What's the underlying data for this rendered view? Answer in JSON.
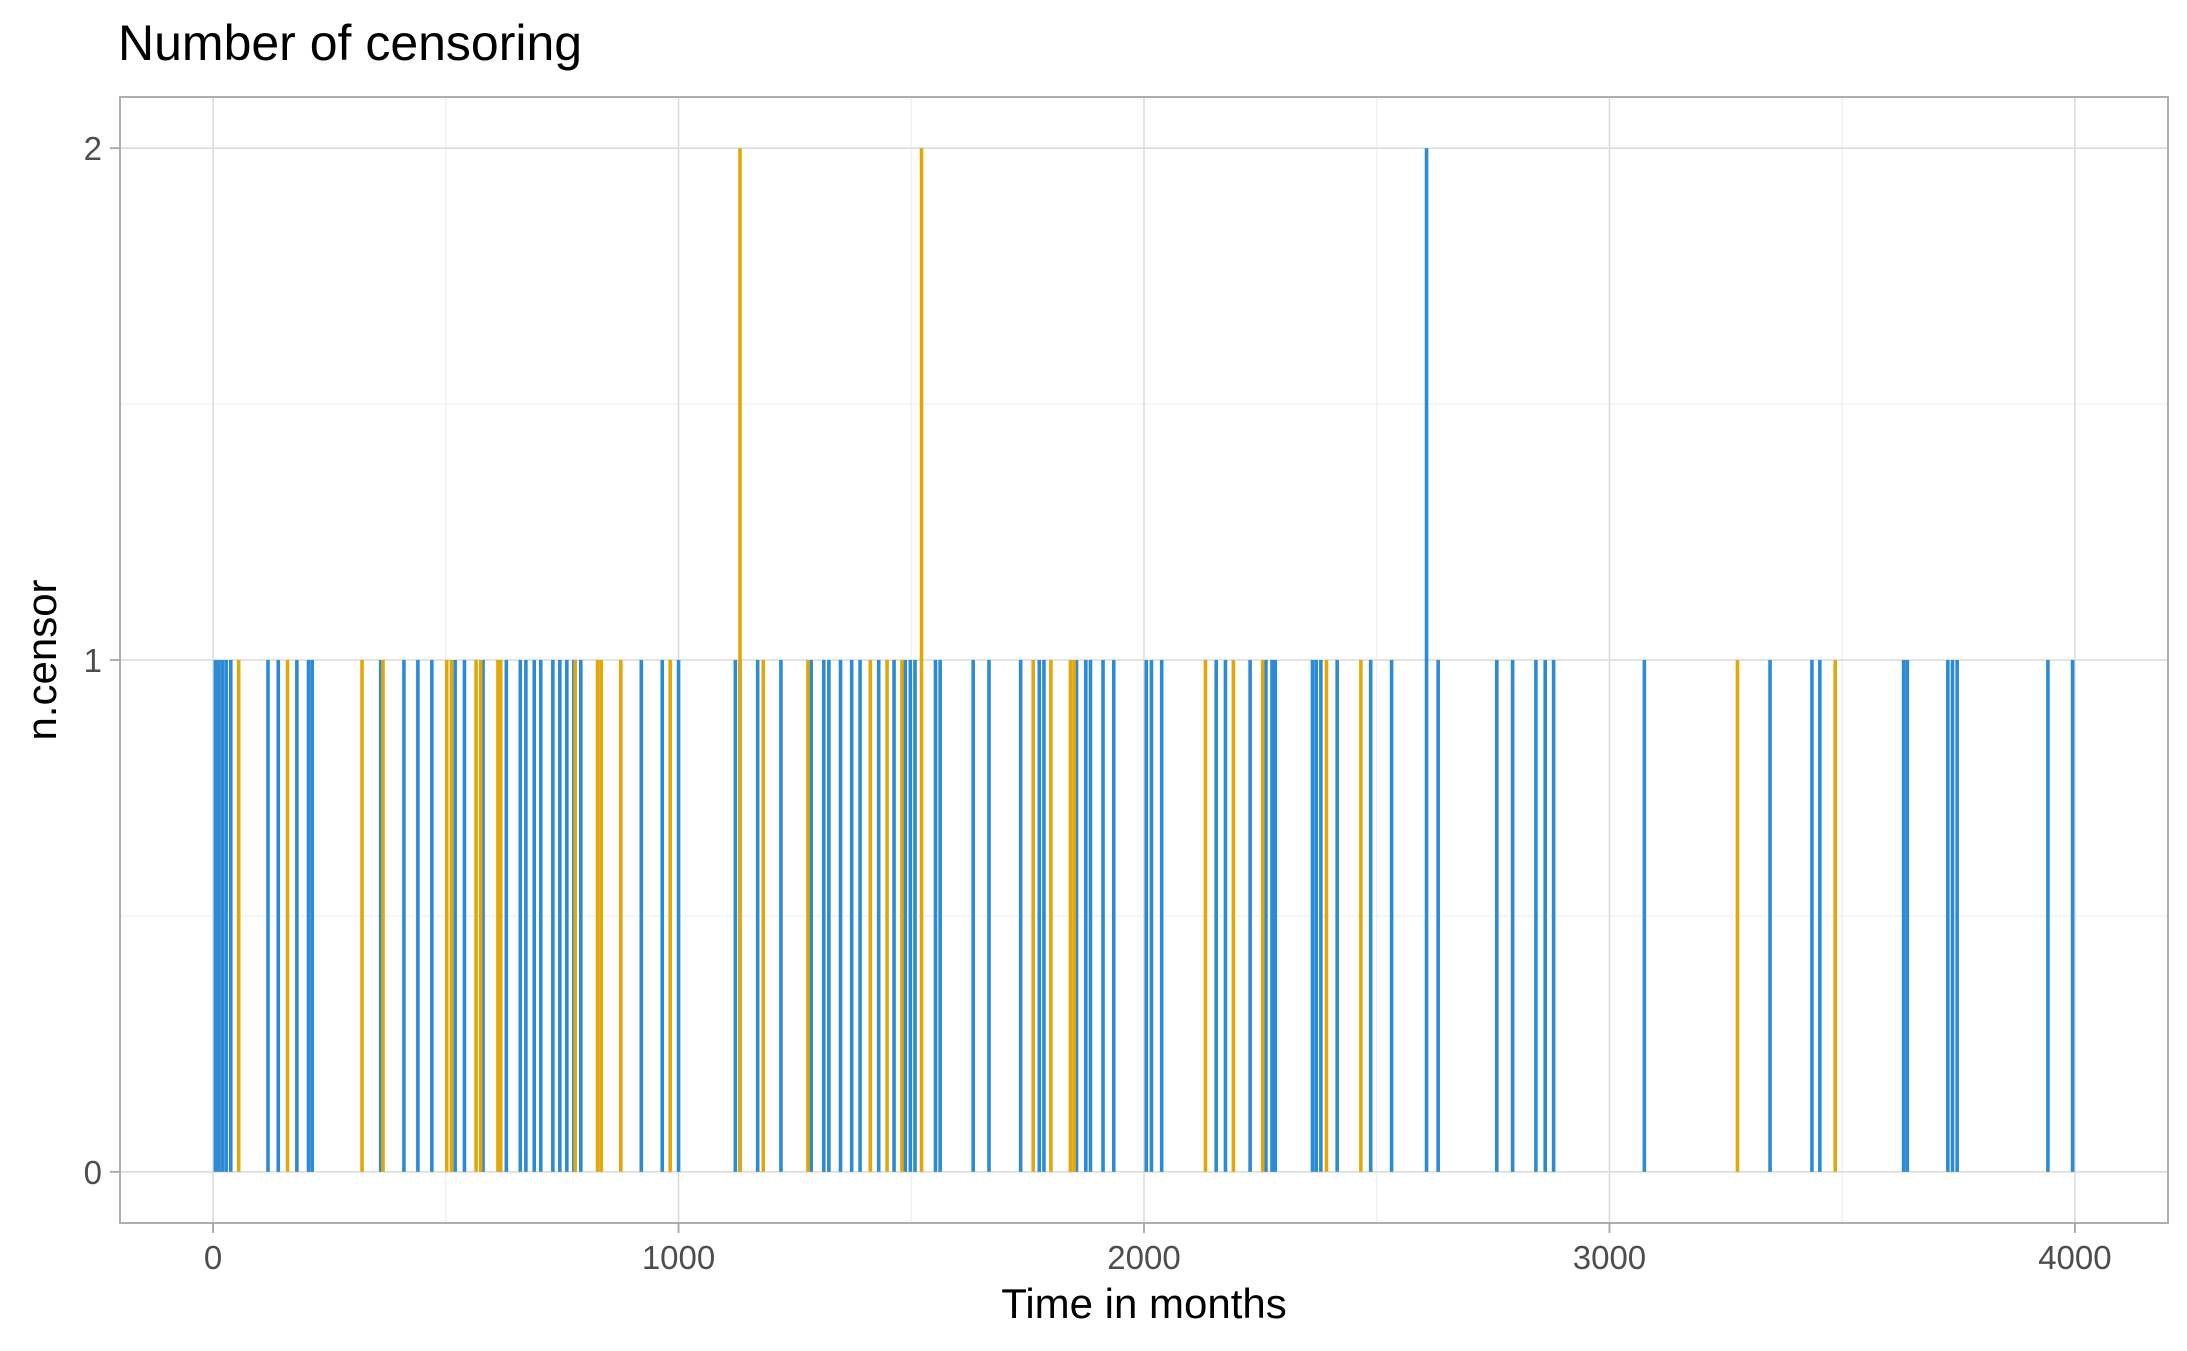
{
  "chart_data": {
    "type": "bar",
    "title": "Number of censoring",
    "xlabel": "Time in months",
    "ylabel": "n.censor",
    "xlim": [
      -200,
      4200
    ],
    "ylim": [
      -0.1,
      2.1
    ],
    "x_ticks": [
      0,
      1000,
      2000,
      3000,
      4000
    ],
    "y_ticks": [
      0,
      1,
      2
    ],
    "grid": true,
    "legend": "none",
    "colors": {
      "blue": "#2c8bd6",
      "orange": "#e3a70a"
    },
    "series": [
      {
        "color": "#2c8bd6",
        "points": [
          [
            5,
            1
          ],
          [
            12,
            1
          ],
          [
            20,
            1
          ],
          [
            28,
            1
          ],
          [
            38,
            1
          ],
          [
            118,
            1
          ],
          [
            140,
            1
          ],
          [
            180,
            1
          ],
          [
            205,
            1
          ],
          [
            213,
            1
          ],
          [
            360,
            1
          ],
          [
            410,
            1
          ],
          [
            440,
            1
          ],
          [
            470,
            1
          ],
          [
            520,
            1
          ],
          [
            540,
            1
          ],
          [
            580,
            1
          ],
          [
            630,
            1
          ],
          [
            660,
            1
          ],
          [
            672,
            1
          ],
          [
            690,
            1
          ],
          [
            704,
            1
          ],
          [
            730,
            1
          ],
          [
            745,
            1
          ],
          [
            760,
            1
          ],
          [
            775,
            1
          ],
          [
            790,
            1
          ],
          [
            920,
            1
          ],
          [
            965,
            1
          ],
          [
            1000,
            1
          ],
          [
            1122,
            1
          ],
          [
            1132,
            1
          ],
          [
            1170,
            1
          ],
          [
            1220,
            1
          ],
          [
            1285,
            1
          ],
          [
            1312,
            1
          ],
          [
            1323,
            1
          ],
          [
            1348,
            1
          ],
          [
            1372,
            1
          ],
          [
            1390,
            1
          ],
          [
            1430,
            1
          ],
          [
            1463,
            1
          ],
          [
            1487,
            1
          ],
          [
            1498,
            1
          ],
          [
            1508,
            1
          ],
          [
            1552,
            1
          ],
          [
            1562,
            1
          ],
          [
            1633,
            1
          ],
          [
            1667,
            1
          ],
          [
            1735,
            1
          ],
          [
            1775,
            1
          ],
          [
            1785,
            1
          ],
          [
            1855,
            1
          ],
          [
            1875,
            1
          ],
          [
            1885,
            1
          ],
          [
            1912,
            1
          ],
          [
            1935,
            1
          ],
          [
            2005,
            1
          ],
          [
            2016,
            1
          ],
          [
            2038,
            1
          ],
          [
            2155,
            1
          ],
          [
            2175,
            1
          ],
          [
            2228,
            1
          ],
          [
            2262,
            1
          ],
          [
            2275,
            1
          ],
          [
            2282,
            1
          ],
          [
            2362,
            1
          ],
          [
            2370,
            1
          ],
          [
            2380,
            1
          ],
          [
            2415,
            1
          ],
          [
            2487,
            1
          ],
          [
            2532,
            1
          ],
          [
            2607,
            2
          ],
          [
            2632,
            1
          ],
          [
            2758,
            1
          ],
          [
            2792,
            1
          ],
          [
            2842,
            1
          ],
          [
            2862,
            1
          ],
          [
            2880,
            1
          ],
          [
            3075,
            1
          ],
          [
            3345,
            1
          ],
          [
            3435,
            1
          ],
          [
            3452,
            1
          ],
          [
            3632,
            1
          ],
          [
            3640,
            1
          ],
          [
            3727,
            1
          ],
          [
            3737,
            1
          ],
          [
            3747,
            1
          ],
          [
            3942,
            1
          ],
          [
            3995,
            1
          ]
        ]
      },
      {
        "color": "#e3a70a",
        "points": [
          [
            55,
            1
          ],
          [
            160,
            1
          ],
          [
            320,
            1
          ],
          [
            365,
            1
          ],
          [
            502,
            1
          ],
          [
            512,
            1
          ],
          [
            565,
            1
          ],
          [
            575,
            1
          ],
          [
            612,
            1
          ],
          [
            618,
            1
          ],
          [
            778,
            1
          ],
          [
            826,
            1
          ],
          [
            834,
            1
          ],
          [
            876,
            1
          ],
          [
            982,
            1
          ],
          [
            1132,
            2
          ],
          [
            1182,
            1
          ],
          [
            1278,
            1
          ],
          [
            1412,
            1
          ],
          [
            1448,
            1
          ],
          [
            1480,
            1
          ],
          [
            1522,
            2
          ],
          [
            1762,
            1
          ],
          [
            1800,
            1
          ],
          [
            1842,
            1
          ],
          [
            1850,
            1
          ],
          [
            2132,
            1
          ],
          [
            2192,
            1
          ],
          [
            2255,
            1
          ],
          [
            2392,
            1
          ],
          [
            2466,
            1
          ],
          [
            3275,
            1
          ],
          [
            3485,
            1
          ]
        ]
      }
    ]
  }
}
